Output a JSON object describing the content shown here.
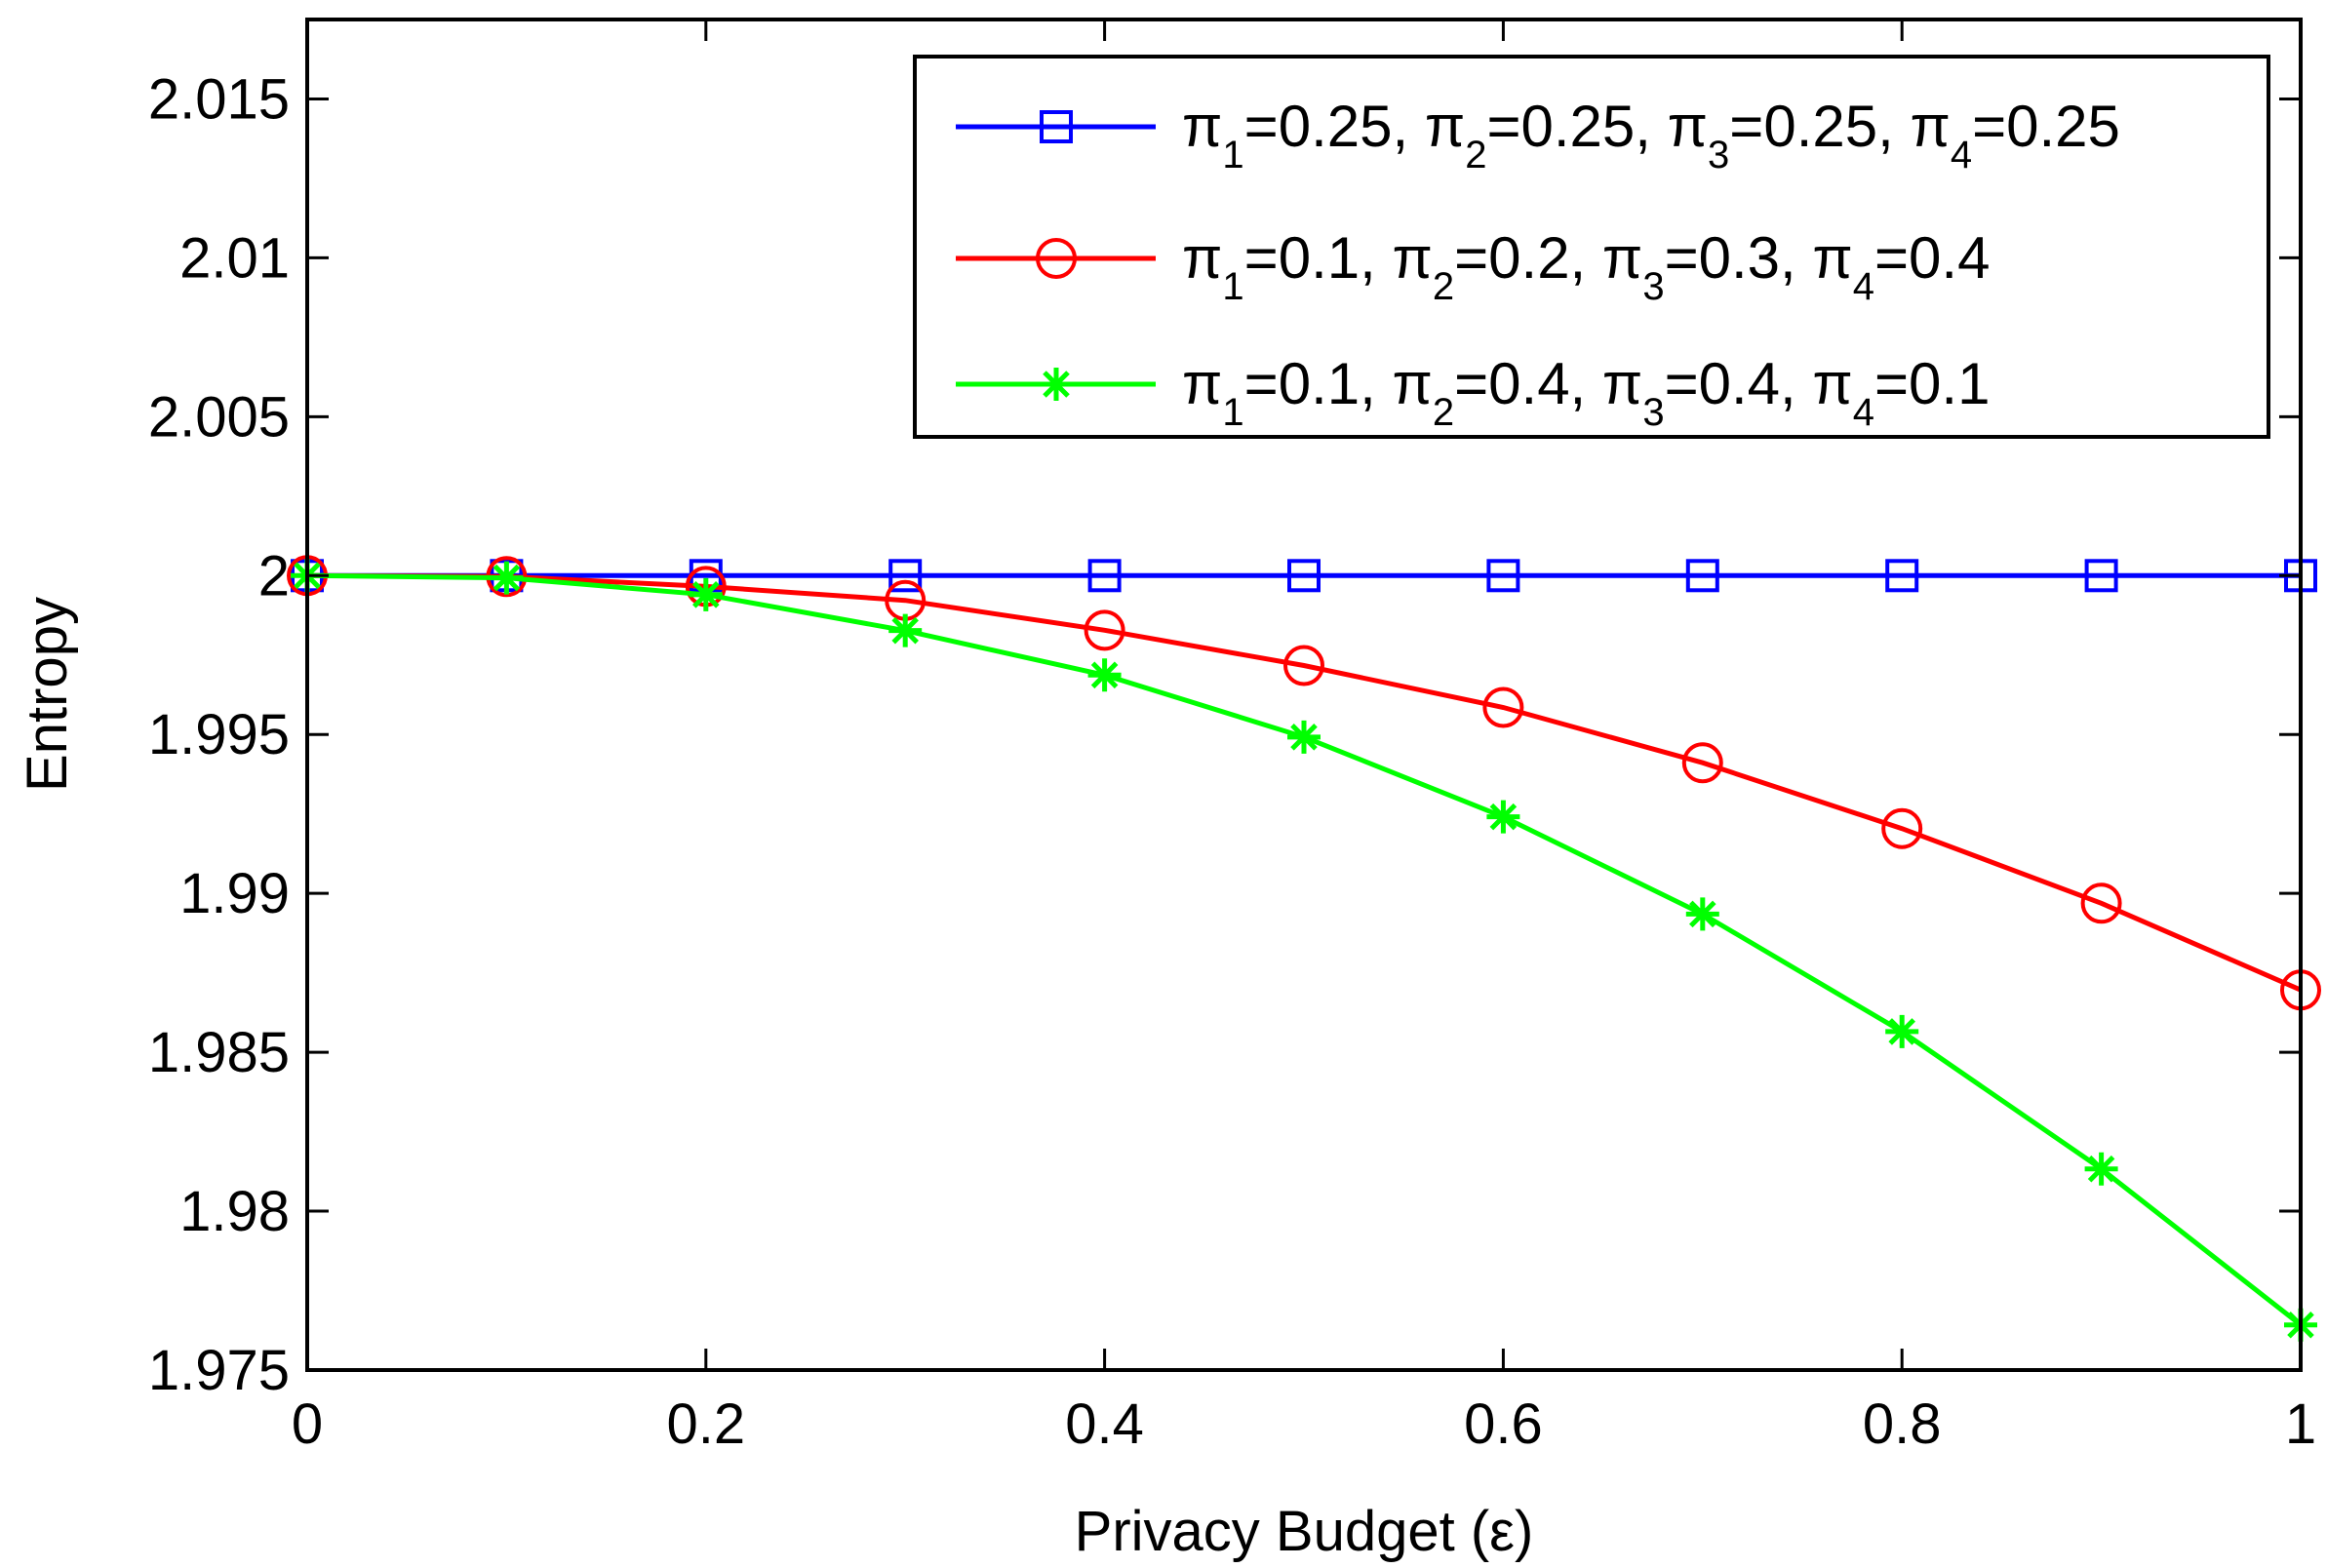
{
  "chart_data": {
    "type": "line",
    "title": "",
    "xlabel": "Privacy Budget (ε)",
    "ylabel": "Entropy",
    "xlim": [
      0,
      1
    ],
    "ylim": [
      1.975,
      2.0175
    ],
    "xticks": [
      0,
      0.2,
      0.4,
      0.6,
      0.8,
      1
    ],
    "xtick_labels": [
      "0",
      "0.2",
      "0.4",
      "0.6",
      "0.8",
      "1"
    ],
    "yticks": [
      1.975,
      1.98,
      1.985,
      1.99,
      1.995,
      2.0,
      2.005,
      2.01,
      2.015
    ],
    "ytick_labels": [
      "1.975",
      "1.98",
      "1.985",
      "1.99",
      "1.995",
      "2",
      "2.005",
      "2.01",
      "2.015"
    ],
    "grid": false,
    "legend_position": "top-right",
    "x": [
      0,
      0.1,
      0.2,
      0.3,
      0.4,
      0.5,
      0.6,
      0.7,
      0.8,
      0.9,
      1.0
    ],
    "series": [
      {
        "name": "π_1=0.25, π_2=0.25, π_3=0.25, π_4=0.25",
        "legend_parts": [
          [
            "π",
            "1",
            "=0.25, "
          ],
          [
            "π",
            "2",
            "=0.25, "
          ],
          [
            "π",
            "3",
            "=0.25, "
          ],
          [
            "π",
            "4",
            "=0.25"
          ]
        ],
        "color": "#0000ff",
        "marker": "square",
        "values": [
          2.0,
          2.0,
          2.0,
          2.0,
          2.0,
          2.0,
          2.0,
          2.0,
          2.0,
          2.0,
          2.0
        ]
      },
      {
        "name": "π_1=0.1, π_2=0.2, π_3=0.3, π_4=0.4",
        "legend_parts": [
          [
            "π",
            "1",
            "=0.1, "
          ],
          [
            "π",
            "2",
            "=0.2, "
          ],
          [
            "π",
            "3",
            "=0.3, "
          ],
          [
            "π",
            "4",
            "=0.4"
          ]
        ],
        "color": "#ff0000",
        "marker": "circle",
        "values": [
          2.0,
          1.99997,
          1.99966,
          1.99922,
          1.99828,
          1.99717,
          1.99585,
          1.99411,
          1.99204,
          1.98969,
          1.98696
        ]
      },
      {
        "name": "π_1=0.1, π_2=0.4, π_3=0.4, π_4=0.1",
        "legend_parts": [
          [
            "π",
            "1",
            "=0.1, "
          ],
          [
            "π",
            "2",
            "=0.4, "
          ],
          [
            "π",
            "3",
            "=0.4, "
          ],
          [
            "π",
            "4",
            "=0.1"
          ]
        ],
        "color": "#00ff00",
        "marker": "asterisk",
        "values": [
          2.0,
          1.99993,
          1.9994,
          1.99827,
          1.99687,
          1.99492,
          1.99241,
          1.98935,
          1.98565,
          1.98133,
          1.97642
        ]
      }
    ]
  }
}
